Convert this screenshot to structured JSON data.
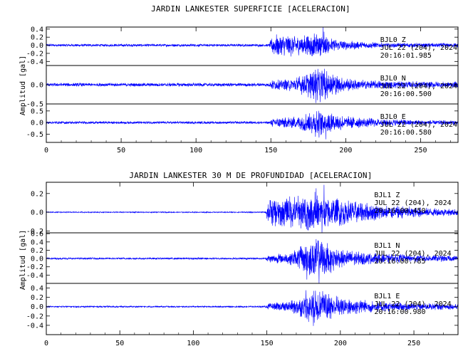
{
  "colors": {
    "trace": "#0000ff",
    "axes": "#000000",
    "background": "#ffffff"
  },
  "chart_data": [
    {
      "type": "line",
      "title": "JARDIN LANKESTER SUPERFICIE [ACELERACION]",
      "ylabel": "Amplitud [gal]",
      "xlim": [
        0,
        275
      ],
      "xticks": [
        0,
        50,
        100,
        150,
        200,
        250
      ],
      "grid": false,
      "legend": "none",
      "series": [
        {
          "station": "BJL0",
          "component": "Z",
          "date": "JUL 22 (204), 2024",
          "time": "20:16:01.985",
          "ylim": [
            -0.5,
            0.45
          ],
          "yticks": [
            0.4,
            0.2,
            0.0,
            -0.2,
            -0.4
          ],
          "ytick_labels": [
            "0.4",
            "0.2",
            "0.0",
            "-0.2",
            "-0.4"
          ],
          "envelope": [
            [
              0,
              0.03
            ],
            [
              149,
              0.03
            ],
            [
              151,
              0.22
            ],
            [
              160,
              0.25
            ],
            [
              170,
              0.22
            ],
            [
              180,
              0.25
            ],
            [
              186,
              0.2
            ],
            [
              195,
              0.12
            ],
            [
              210,
              0.08
            ],
            [
              230,
              0.05
            ],
            [
              275,
              0.05
            ]
          ],
          "peak": 0.45
        },
        {
          "station": "BJL0",
          "component": "N",
          "date": "JUL 22 (204), 2024",
          "time": "20:16:00.500",
          "ylim": [
            -0.5,
            0.5
          ],
          "yticks": [
            0.0,
            -0.5
          ],
          "ytick_labels": [
            "0.0",
            "-0.5"
          ],
          "envelope": [
            [
              0,
              0.04
            ],
            [
              149,
              0.04
            ],
            [
              151,
              0.12
            ],
            [
              165,
              0.15
            ],
            [
              176,
              0.3
            ],
            [
              182,
              0.4
            ],
            [
              188,
              0.3
            ],
            [
              198,
              0.16
            ],
            [
              215,
              0.1
            ],
            [
              240,
              0.08
            ],
            [
              275,
              0.07
            ]
          ],
          "peak": 0.48
        },
        {
          "station": "BJL0",
          "component": "E",
          "date": "JUL 22 (204), 2024",
          "time": "20:16:00.580",
          "ylim": [
            -0.85,
            0.8
          ],
          "yticks": [
            0.5,
            0.0,
            -0.5
          ],
          "ytick_labels": [
            "0.5",
            "0.0",
            "-0.5"
          ],
          "envelope": [
            [
              0,
              0.05
            ],
            [
              149,
              0.05
            ],
            [
              151,
              0.18
            ],
            [
              168,
              0.25
            ],
            [
              176,
              0.45
            ],
            [
              182,
              0.55
            ],
            [
              190,
              0.4
            ],
            [
              200,
              0.25
            ],
            [
              220,
              0.15
            ],
            [
              250,
              0.1
            ],
            [
              275,
              0.08
            ]
          ],
          "peak": 0.75
        }
      ]
    },
    {
      "type": "line",
      "title": "JARDIN LANKESTER 30 M DE PROFUNDIDAD [ACELERACION]",
      "ylabel": "Amplitud [gal]",
      "xlim": [
        0,
        280
      ],
      "xticks": [
        0,
        50,
        100,
        150,
        200,
        250
      ],
      "grid": false,
      "legend": "none",
      "series": [
        {
          "station": "BJL1",
          "component": "Z",
          "date": "JUL 22 (204), 2024",
          "time": "20:16:00.450",
          "ylim": [
            -0.22,
            0.32
          ],
          "yticks": [
            0.2,
            0.0,
            -0.2
          ],
          "ytick_labels": [
            "0.2",
            "0.0",
            "-0.2"
          ],
          "envelope": [
            [
              0,
              0.005
            ],
            [
              149,
              0.005
            ],
            [
              151,
              0.12
            ],
            [
              160,
              0.14
            ],
            [
              175,
              0.16
            ],
            [
              185,
              0.18
            ],
            [
              195,
              0.14
            ],
            [
              210,
              0.1
            ],
            [
              230,
              0.07
            ],
            [
              260,
              0.04
            ],
            [
              280,
              0.03
            ]
          ],
          "peak": 0.3
        },
        {
          "station": "BJL1",
          "component": "N",
          "date": "JUL 22 (204), 2024",
          "time": "20:16:00.785",
          "ylim": [
            -0.6,
            0.62
          ],
          "yticks": [
            0.6,
            0.4,
            0.2,
            0.0,
            -0.2,
            -0.4
          ],
          "ytick_labels": [
            "0.6",
            "0.4",
            "0.2",
            "0.0",
            "-0.2",
            "-0.4"
          ],
          "envelope": [
            [
              0,
              0.02
            ],
            [
              149,
              0.02
            ],
            [
              151,
              0.08
            ],
            [
              165,
              0.12
            ],
            [
              176,
              0.3
            ],
            [
              182,
              0.45
            ],
            [
              190,
              0.35
            ],
            [
              200,
              0.2
            ],
            [
              220,
              0.12
            ],
            [
              250,
              0.08
            ],
            [
              280,
              0.06
            ]
          ],
          "peak": 0.6
        },
        {
          "station": "BJL1",
          "component": "E",
          "date": "JUL 22 (204), 2024",
          "time": "20:16:00.980",
          "ylim": [
            -0.6,
            0.5
          ],
          "yticks": [
            0.4,
            0.2,
            0.0,
            -0.2,
            -0.4
          ],
          "ytick_labels": [
            "0.4",
            "0.2",
            "0.0",
            "-0.2",
            "-0.4"
          ],
          "envelope": [
            [
              0,
              0.015
            ],
            [
              149,
              0.015
            ],
            [
              151,
              0.06
            ],
            [
              165,
              0.1
            ],
            [
              176,
              0.22
            ],
            [
              182,
              0.3
            ],
            [
              192,
              0.25
            ],
            [
              205,
              0.16
            ],
            [
              225,
              0.1
            ],
            [
              250,
              0.07
            ],
            [
              280,
              0.05
            ]
          ],
          "peak": 0.45
        }
      ]
    }
  ]
}
